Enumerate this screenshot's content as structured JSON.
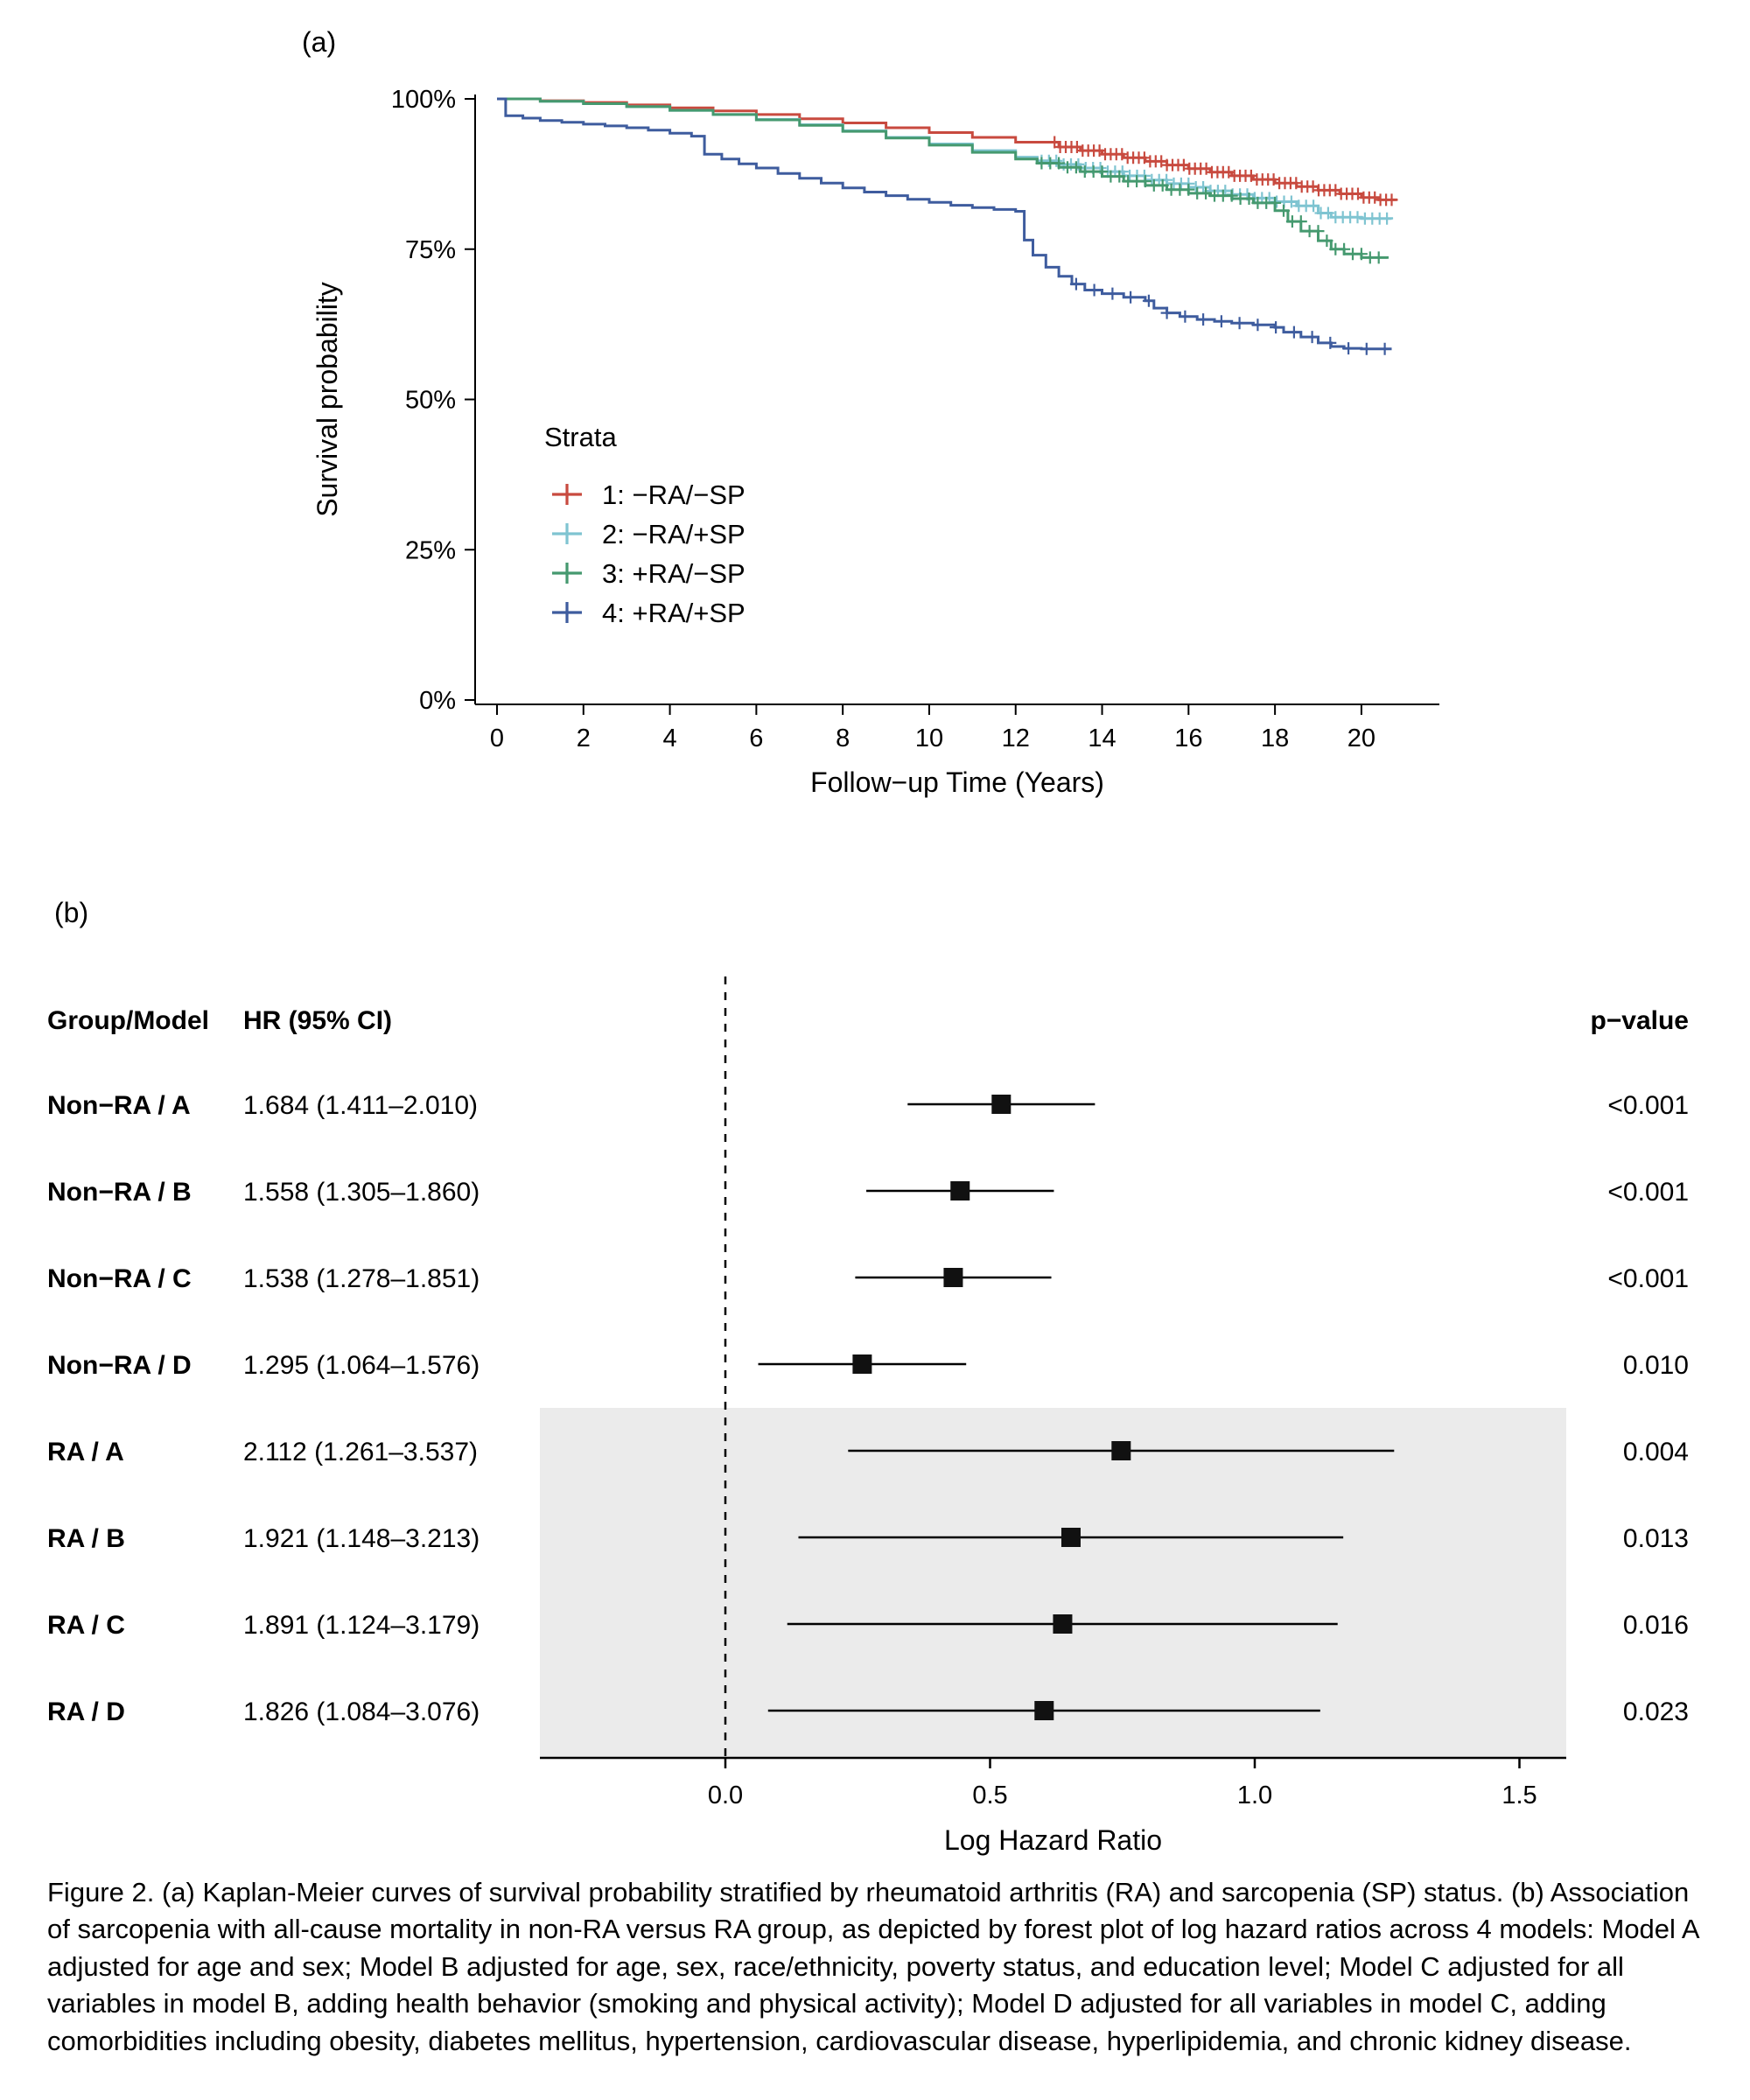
{
  "figure": {
    "panel_a_label": "(a)",
    "panel_b_label": "(b)",
    "caption": "Figure 2. (a) Kaplan-Meier curves of survival probability stratified by rheumatoid arthritis (RA) and sarcopenia (SP) status. (b) Association of sarcopenia with all-cause mortality in non-RA versus RA group, as depicted by forest plot of log hazard ratios across 4 models: Model A adjusted for age and sex; Model B adjusted for age, sex, race/ethnicity, poverty status, and education level; Model C adjusted for all variables in model B, adding health behavior (smoking and physical activity); Model D adjusted for all variables in model C, adding comorbidities including obesity, diabetes mellitus, hypertension, cardiovascular disease, hyperlipidemia, and chronic kidney disease."
  },
  "chart_data": [
    {
      "type": "line",
      "subtype": "kaplan_meier_step",
      "title": "",
      "xlabel": "Follow−up Time (Years)",
      "ylabel": "Survival probability",
      "xlim": [
        0,
        21.5
      ],
      "ylim": [
        0,
        100
      ],
      "xticks": [
        0,
        2,
        4,
        6,
        8,
        10,
        12,
        14,
        16,
        18,
        20
      ],
      "yticks": [
        0,
        25,
        50,
        75,
        100
      ],
      "ytick_labels": [
        "0%",
        "25%",
        "50%",
        "75%",
        "100%"
      ],
      "grid": false,
      "legend": {
        "title": "Strata",
        "position": "inside-middle-left"
      },
      "series": [
        {
          "key": "stratum-1",
          "name": "1: −RA/−SP",
          "color": "#C84A3F",
          "points": [
            [
              0,
              100
            ],
            [
              1,
              99.7
            ],
            [
              2,
              99.4
            ],
            [
              3,
              99
            ],
            [
              4,
              98.5
            ],
            [
              5,
              98
            ],
            [
              6,
              97.4
            ],
            [
              7,
              96.7
            ],
            [
              8,
              96
            ],
            [
              9,
              95.2
            ],
            [
              10,
              94.4
            ],
            [
              11,
              93.6
            ],
            [
              12,
              92.8
            ],
            [
              13,
              92
            ],
            [
              13.5,
              91.4
            ],
            [
              14,
              90.8
            ],
            [
              14.5,
              90.2
            ],
            [
              15,
              89.6
            ],
            [
              15.5,
              89
            ],
            [
              16,
              88.4
            ],
            [
              16.5,
              87.8
            ],
            [
              17,
              87.2
            ],
            [
              17.5,
              86.6
            ],
            [
              18,
              86
            ],
            [
              18.5,
              85.4
            ],
            [
              19,
              84.8
            ],
            [
              19.5,
              84.2
            ],
            [
              20,
              83.6
            ],
            [
              20.4,
              83.2
            ],
            [
              20.8,
              83
            ]
          ],
          "censor": {
            "from": 12.9,
            "to": 20.75,
            "step": 0.13
          }
        },
        {
          "key": "stratum-2",
          "name": "2: −RA/+SP",
          "color": "#7FC4D1",
          "points": [
            [
              0,
              100
            ],
            [
              1,
              99.6
            ],
            [
              2,
              99.2
            ],
            [
              3,
              98.7
            ],
            [
              4,
              98.1
            ],
            [
              5,
              97.4
            ],
            [
              6,
              96.6
            ],
            [
              7,
              95.7
            ],
            [
              8,
              94.7
            ],
            [
              9,
              93.6
            ],
            [
              10,
              92.5
            ],
            [
              11,
              91.4
            ],
            [
              12,
              90.3
            ],
            [
              12.5,
              89.7
            ],
            [
              13,
              89.1
            ],
            [
              13.5,
              88.5
            ],
            [
              14,
              87.9
            ],
            [
              14.5,
              87.2
            ],
            [
              15,
              86.5
            ],
            [
              15.5,
              85.9
            ],
            [
              16,
              85.3
            ],
            [
              16.5,
              84.7
            ],
            [
              17,
              84.1
            ],
            [
              17.5,
              83.5
            ],
            [
              18,
              82.9
            ],
            [
              18.5,
              82.2
            ],
            [
              19,
              81
            ],
            [
              19.3,
              80.3
            ],
            [
              20,
              80.1
            ],
            [
              20.7,
              80
            ]
          ],
          "censor": {
            "from": 12.6,
            "to": 20.65,
            "step": 0.17
          }
        },
        {
          "key": "stratum-3",
          "name": "3: +RA/−SP",
          "color": "#45996F",
          "points": [
            [
              0,
              100
            ],
            [
              1,
              99.6
            ],
            [
              2,
              99.2
            ],
            [
              3,
              98.7
            ],
            [
              4,
              98.1
            ],
            [
              5,
              97.4
            ],
            [
              6,
              96.5
            ],
            [
              7,
              95.6
            ],
            [
              8,
              94.6
            ],
            [
              9,
              93.5
            ],
            [
              10,
              92.3
            ],
            [
              11,
              91.1
            ],
            [
              12,
              90
            ],
            [
              12.5,
              89.3
            ],
            [
              13,
              88.6
            ],
            [
              13.5,
              87.9
            ],
            [
              14,
              87.1
            ],
            [
              14.5,
              86.3
            ],
            [
              15,
              85.6
            ],
            [
              15.5,
              84.9
            ],
            [
              16,
              84.3
            ],
            [
              16.5,
              83.9
            ],
            [
              17,
              83.4
            ],
            [
              17.5,
              82.7
            ],
            [
              18,
              81.4
            ],
            [
              18.3,
              79.6
            ],
            [
              18.6,
              78
            ],
            [
              19,
              76.4
            ],
            [
              19.3,
              75
            ],
            [
              19.6,
              74.2
            ],
            [
              20,
              73.6
            ],
            [
              20.6,
              73.4
            ]
          ],
          "censor": {
            "from": 12.6,
            "to": 20.5,
            "step": 0.2
          }
        },
        {
          "key": "stratum-4",
          "name": "4: +RA/+SP",
          "color": "#3E5C9E",
          "points": [
            [
              0,
              100
            ],
            [
              0.2,
              97.2
            ],
            [
              0.6,
              96.8
            ],
            [
              1,
              96.4
            ],
            [
              1.5,
              96.1
            ],
            [
              2,
              95.8
            ],
            [
              2.5,
              95.5
            ],
            [
              3,
              95.2
            ],
            [
              3.5,
              94.8
            ],
            [
              4,
              94.3
            ],
            [
              4.5,
              93.8
            ],
            [
              4.8,
              90.8
            ],
            [
              5.2,
              90
            ],
            [
              5.6,
              89.2
            ],
            [
              6,
              88.5
            ],
            [
              6.5,
              87.6
            ],
            [
              7,
              86.8
            ],
            [
              7.5,
              86
            ],
            [
              8,
              85.2
            ],
            [
              8.5,
              84.5
            ],
            [
              9,
              83.9
            ],
            [
              9.5,
              83.3
            ],
            [
              10,
              82.8
            ],
            [
              10.5,
              82.3
            ],
            [
              11,
              81.9
            ],
            [
              11.5,
              81.6
            ],
            [
              12,
              81.3
            ],
            [
              12.2,
              76.5
            ],
            [
              12.4,
              74
            ],
            [
              12.7,
              72
            ],
            [
              13,
              70.5
            ],
            [
              13.3,
              69.2
            ],
            [
              13.6,
              68.2
            ],
            [
              14,
              67.6
            ],
            [
              14.5,
              67
            ],
            [
              15,
              66.4
            ],
            [
              15.2,
              65.2
            ],
            [
              15.5,
              64.4
            ],
            [
              15.8,
              63.8
            ],
            [
              16.2,
              63.3
            ],
            [
              16.6,
              63
            ],
            [
              17,
              62.7
            ],
            [
              17.5,
              62.4
            ],
            [
              18,
              62
            ],
            [
              18.2,
              61.2
            ],
            [
              18.6,
              60.4
            ],
            [
              19,
              59.4
            ],
            [
              19.3,
              58.8
            ],
            [
              19.6,
              58.5
            ],
            [
              20,
              58.4
            ],
            [
              20.7,
              58.4
            ]
          ],
          "censor": {
            "from": 13.4,
            "to": 20.6,
            "step": 0.42
          }
        }
      ]
    },
    {
      "type": "scatter",
      "subtype": "forest_plot",
      "xlabel": "Log Hazard Ratio",
      "xlim": [
        -0.35,
        1.6
      ],
      "xticks": [
        0,
        0.5,
        1,
        1.5
      ],
      "xtick_labels": [
        "0.0",
        "0.5",
        "1.0",
        "1.5"
      ],
      "reference_line_x": 0,
      "marker_position_note": "markers plotted at natural log of HR and CI bounds",
      "shade_color": "#EBEBEB",
      "shaded_group": "RA",
      "columns": {
        "group": "Group/Model",
        "hr": "HR (95% CI)",
        "p": "p−value"
      },
      "rows": [
        {
          "group": "Non−RA / A",
          "hr_label": "1.684 (1.411–2.010)",
          "hr": 1.684,
          "ci_low": 1.411,
          "ci_high": 2.01,
          "p": "<0.001",
          "shaded": false
        },
        {
          "group": "Non−RA / B",
          "hr_label": "1.558 (1.305–1.860)",
          "hr": 1.558,
          "ci_low": 1.305,
          "ci_high": 1.86,
          "p": "<0.001",
          "shaded": false
        },
        {
          "group": "Non−RA / C",
          "hr_label": "1.538 (1.278–1.851)",
          "hr": 1.538,
          "ci_low": 1.278,
          "ci_high": 1.851,
          "p": "<0.001",
          "shaded": false
        },
        {
          "group": "Non−RA / D",
          "hr_label": "1.295 (1.064–1.576)",
          "hr": 1.295,
          "ci_low": 1.064,
          "ci_high": 1.576,
          "p": "0.010",
          "shaded": false
        },
        {
          "group": "RA / A",
          "hr_label": "2.112 (1.261–3.537)",
          "hr": 2.112,
          "ci_low": 1.261,
          "ci_high": 3.537,
          "p": "0.004",
          "shaded": true
        },
        {
          "group": "RA / B",
          "hr_label": "1.921 (1.148–3.213)",
          "hr": 1.921,
          "ci_low": 1.148,
          "ci_high": 3.213,
          "p": "0.013",
          "shaded": true
        },
        {
          "group": "RA / C",
          "hr_label": "1.891 (1.124–3.179)",
          "hr": 1.891,
          "ci_low": 1.124,
          "ci_high": 3.179,
          "p": "0.016",
          "shaded": true
        },
        {
          "group": "RA / D",
          "hr_label": "1.826 (1.084–3.076)",
          "hr": 1.826,
          "ci_low": 1.084,
          "ci_high": 3.076,
          "p": "0.023",
          "shaded": true
        }
      ]
    }
  ]
}
